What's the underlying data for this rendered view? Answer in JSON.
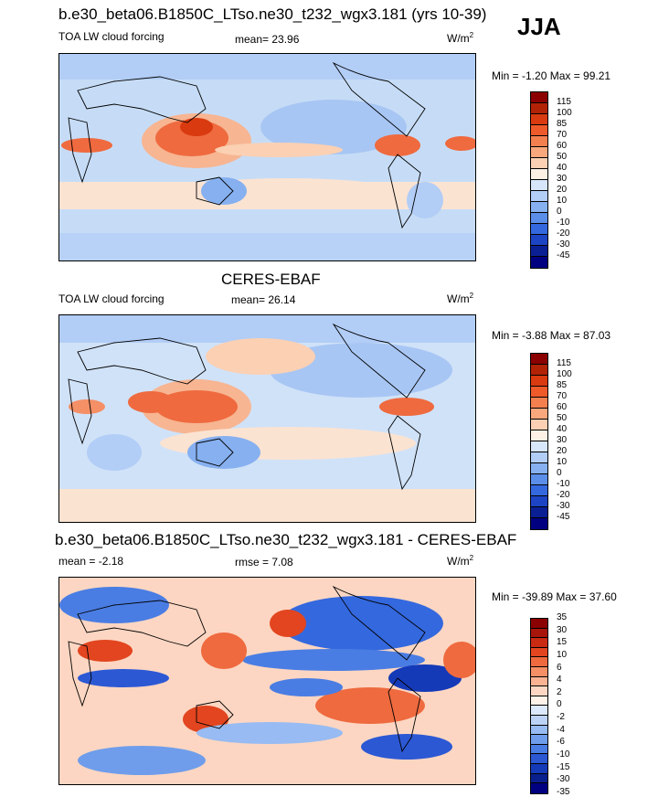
{
  "season": "JJA",
  "panels": [
    {
      "title": "b.e30_beta06.B1850C_LTso.ne30_t232_wgx3.181 (yrs 10-39)",
      "left_label": "TOA LW cloud forcing",
      "center_label": "mean=  23.96",
      "units": "W/m",
      "units_exp": "2",
      "minmax": "Min = -1.20 Max = 99.21",
      "colorbar": {
        "colors": [
          "#8b0000",
          "#b22206",
          "#d93a0f",
          "#ef5a2a",
          "#f5804f",
          "#f9a77c",
          "#fbd0b3",
          "#fdf0e4",
          "#d7e6fa",
          "#b2cdf6",
          "#86b0f0",
          "#5b8ee8",
          "#3468de",
          "#1c44c4",
          "#0b1f95",
          "#000080"
        ],
        "ticks": [
          "115",
          "100",
          "85",
          "70",
          "60",
          "50",
          "40",
          "30",
          "20",
          "10",
          "0",
          "-10",
          "-20",
          "-30",
          "-45"
        ]
      }
    },
    {
      "title": "CERES-EBAF",
      "left_label": "TOA LW cloud forcing",
      "center_label": "mean=  26.14",
      "units": "W/m",
      "units_exp": "2",
      "minmax": "Min = -3.88 Max = 87.03",
      "colorbar": {
        "colors": [
          "#8b0000",
          "#b22206",
          "#d93a0f",
          "#ef5a2a",
          "#f5804f",
          "#f9a77c",
          "#fbd0b3",
          "#fdf0e4",
          "#d7e6fa",
          "#b2cdf6",
          "#86b0f0",
          "#5b8ee8",
          "#3468de",
          "#1c44c4",
          "#0b1f95",
          "#000080"
        ],
        "ticks": [
          "115",
          "100",
          "85",
          "70",
          "60",
          "50",
          "40",
          "30",
          "20",
          "10",
          "0",
          "-10",
          "-20",
          "-30",
          "-45"
        ]
      }
    },
    {
      "title": "b.e30_beta06.B1850C_LTso.ne30_t232_wgx3.181 - CERES-EBAF",
      "left_label": "mean =  -2.18",
      "center_label": "rmse =  7.08",
      "units": "W/m",
      "units_exp": "2",
      "minmax": "Min = -39.89 Max =  37.60",
      "colorbar": {
        "colors": [
          "#8b0000",
          "#a8150a",
          "#c92a12",
          "#e2451f",
          "#ef6a3f",
          "#f58f66",
          "#f9b393",
          "#fcd6c2",
          "#fdf1e8",
          "#dce8fb",
          "#bcd3f7",
          "#97bbf2",
          "#6f9deb",
          "#4a7de3",
          "#2c58d4",
          "#153ab8",
          "#091f8e",
          "#000080"
        ],
        "ticks": [
          "35",
          "30",
          "15",
          "10",
          "6",
          "4",
          "2",
          "0",
          "-2",
          "-4",
          "-6",
          "-10",
          "-15",
          "-30",
          "-35"
        ]
      }
    }
  ]
}
